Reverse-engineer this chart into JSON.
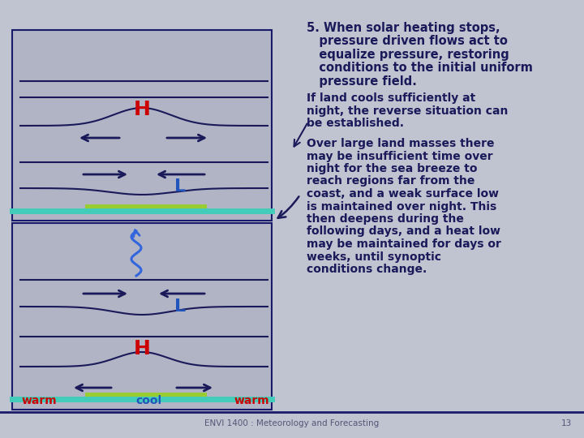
{
  "bg_color": "#c0c4d0",
  "slide_bg": "#b0b4c4",
  "box_border_color": "#1a1a6a",
  "text_color": "#1a1a5a",
  "footer": "ENVI 1400 : Meteorology and Forecasting",
  "page_num": "13",
  "arrow_color": "#1a1a5a",
  "h_label_color": "#cc0000",
  "l_label_color": "#2255bb",
  "warm_color": "#cc0000",
  "cool_color": "#2255bb",
  "land_color": "#99cc33",
  "sea_color": "#44ccbb",
  "squiggle_color": "#3366dd",
  "title_line1": "5. When solar heating stops,",
  "title_line2": "pressure driven flows act to",
  "title_line3": "equalize pressure, restoring",
  "title_line4": "conditions to the initial uniform",
  "title_line5": "pressure field.",
  "para2_line1": "If land cools sufficiently at",
  "para2_line2": "night, the reverse situation can",
  "para2_line3": "be established.",
  "para3_lines": [
    "Over large land masses there",
    "may be insufficient time over",
    "night for the sea breeze to",
    "reach regions far from the",
    "coast, and a weak surface low",
    "is maintained over night. This",
    "then deepens during the",
    "following days, and a heat low",
    "may be maintained for days or",
    "weeks, until synoptic",
    "conditions change."
  ]
}
